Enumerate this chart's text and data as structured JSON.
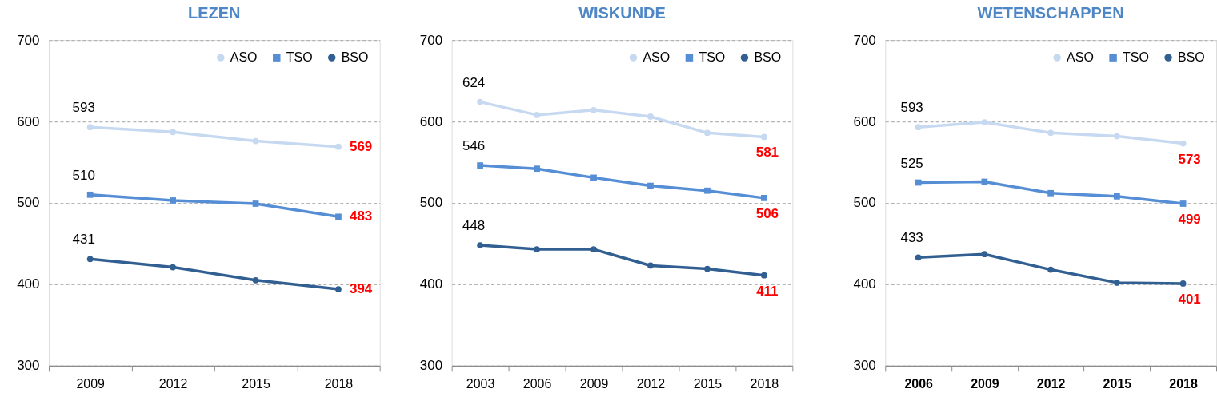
{
  "chart_data": [
    {
      "type": "line",
      "title": "LEZEN",
      "categories": [
        "2009",
        "2012",
        "2015",
        "2018"
      ],
      "ylim": [
        300,
        700
      ],
      "yticks": [
        300,
        400,
        500,
        600,
        700
      ],
      "grid": "y",
      "legend": "top right",
      "marker": "circle",
      "series": [
        {
          "name": "ASO",
          "color": "#c6d9f1",
          "values": [
            593,
            587,
            576,
            569
          ],
          "value_labels": [
            "593",
            null,
            null,
            "569"
          ]
        },
        {
          "name": "TSO",
          "color": "#558ed5",
          "marker": "square",
          "values": [
            510,
            503,
            499,
            483
          ],
          "value_labels": [
            "510",
            null,
            null,
            "483"
          ]
        },
        {
          "name": "BSO",
          "color": "#325f91",
          "values": [
            431,
            421,
            405,
            394
          ],
          "value_labels": [
            "431",
            null,
            null,
            "394"
          ]
        }
      ]
    },
    {
      "type": "line",
      "title": "WISKUNDE",
      "categories": [
        "2003",
        "2006",
        "2009",
        "2012",
        "2015",
        "2018"
      ],
      "ylim": [
        300,
        700
      ],
      "yticks": [
        300,
        400,
        500,
        600,
        700
      ],
      "grid": "y",
      "legend": "top right",
      "marker": "circle",
      "series": [
        {
          "name": "ASO",
          "color": "#c6d9f1",
          "values": [
            624,
            608,
            614,
            606,
            586,
            581
          ],
          "value_labels": [
            "624",
            null,
            null,
            null,
            null,
            "581"
          ]
        },
        {
          "name": "TSO",
          "color": "#558ed5",
          "marker": "square",
          "values": [
            546,
            542,
            531,
            521,
            515,
            506
          ],
          "value_labels": [
            "546",
            null,
            null,
            null,
            null,
            "506"
          ]
        },
        {
          "name": "BSO",
          "color": "#325f91",
          "values": [
            448,
            443,
            443,
            423,
            419,
            411
          ],
          "value_labels": [
            "448",
            null,
            null,
            null,
            null,
            "411"
          ]
        }
      ]
    },
    {
      "type": "line",
      "title": "WETENSCHAPPEN",
      "categories": [
        "2006",
        "2009",
        "2012",
        "2015",
        "2018"
      ],
      "ylim": [
        300,
        700
      ],
      "yticks": [
        300,
        400,
        500,
        600,
        700
      ],
      "grid": "y",
      "legend": "top right",
      "marker": "circle",
      "series": [
        {
          "name": "ASO",
          "color": "#c6d9f1",
          "values": [
            593,
            599,
            586,
            582,
            573
          ],
          "value_labels": [
            "593",
            null,
            null,
            null,
            "573"
          ]
        },
        {
          "name": "TSO",
          "color": "#558ed5",
          "marker": "square",
          "values": [
            525,
            526,
            512,
            508,
            499
          ],
          "value_labels": [
            "525",
            null,
            null,
            null,
            "499"
          ]
        },
        {
          "name": "BSO",
          "color": "#325f91",
          "values": [
            433,
            437,
            418,
            402,
            401
          ],
          "value_labels": [
            "433",
            null,
            null,
            null,
            "401"
          ]
        }
      ]
    }
  ]
}
